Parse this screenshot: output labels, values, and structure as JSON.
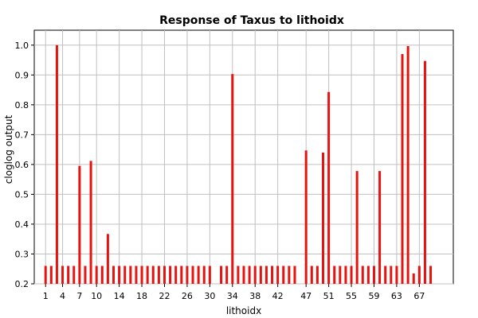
{
  "chart_data": {
    "type": "bar",
    "title": "Response of Taxus to lithoidx",
    "xlabel": "lithoidx",
    "ylabel": "cloglog output",
    "ylim": [
      0.2,
      1.05
    ],
    "xlim": [
      -1,
      73
    ],
    "grid": true,
    "legend": "none",
    "bar_color": "#e8130f",
    "y_ticks": [
      0.2,
      0.3,
      0.4,
      0.5,
      0.6,
      0.7,
      0.8,
      0.9,
      1.0
    ],
    "y_tick_labels": [
      "0.2",
      "0.3",
      "0.4",
      "0.5",
      "0.6",
      "0.7",
      "0.8",
      "0.9",
      "1.0"
    ],
    "x_ticks": [
      1,
      4,
      7,
      10,
      14,
      18,
      22,
      26,
      30,
      34,
      38,
      42,
      47,
      51,
      55,
      59,
      63,
      67
    ],
    "x_tick_labels": [
      "1",
      "4",
      "7",
      "10",
      "14",
      "18",
      "22",
      "26",
      "30",
      "34",
      "38",
      "42",
      "47",
      "51",
      "55",
      "59",
      "63",
      "67"
    ],
    "x": [
      1,
      2,
      3,
      4,
      5,
      6,
      7,
      8,
      9,
      10,
      11,
      12,
      13,
      14,
      15,
      16,
      17,
      18,
      19,
      20,
      21,
      22,
      23,
      24,
      25,
      26,
      27,
      28,
      29,
      30,
      32,
      33,
      34,
      35,
      36,
      37,
      38,
      39,
      40,
      41,
      42,
      43,
      44,
      45,
      47,
      48,
      49,
      50,
      51,
      52,
      53,
      54,
      55,
      56,
      57,
      58,
      59,
      60,
      61,
      62,
      63,
      64,
      65,
      66,
      67,
      68,
      69
    ],
    "values": [
      0.26,
      0.26,
      1.0,
      0.26,
      0.26,
      0.26,
      0.595,
      0.26,
      0.612,
      0.26,
      0.26,
      0.367,
      0.26,
      0.26,
      0.26,
      0.26,
      0.26,
      0.26,
      0.26,
      0.26,
      0.26,
      0.26,
      0.26,
      0.26,
      0.26,
      0.26,
      0.26,
      0.26,
      0.26,
      0.26,
      0.26,
      0.26,
      0.903,
      0.26,
      0.26,
      0.26,
      0.26,
      0.26,
      0.26,
      0.26,
      0.26,
      0.26,
      0.26,
      0.26,
      0.647,
      0.26,
      0.26,
      0.64,
      0.843,
      0.26,
      0.26,
      0.26,
      0.26,
      0.578,
      0.26,
      0.26,
      0.26,
      0.578,
      0.26,
      0.26,
      0.26,
      0.97,
      0.997,
      0.235,
      0.26,
      0.947,
      0.26
    ]
  }
}
